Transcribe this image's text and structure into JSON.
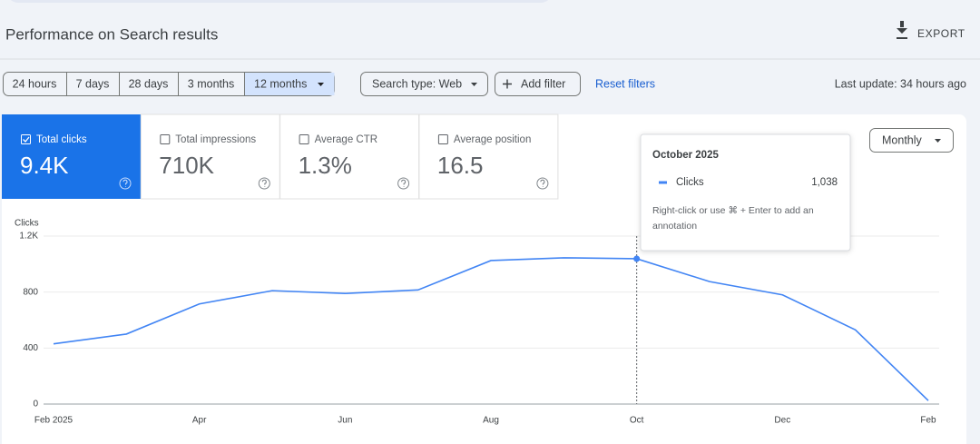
{
  "header": {
    "title": "Performance on Search results",
    "export": "EXPORT"
  },
  "filters": {
    "date_ranges": [
      "24 hours",
      "7 days",
      "28 days",
      "3 months",
      "12 months"
    ],
    "selected": 4,
    "search_type": "Search type: Web",
    "add_filter": "Add filter",
    "reset": "Reset filters",
    "last_update": "Last update: 34 hours ago"
  },
  "metrics": [
    {
      "label": "Total clicks",
      "value": "9.4K",
      "selected": true
    },
    {
      "label": "Total impressions",
      "value": "710K",
      "selected": false
    },
    {
      "label": "Average CTR",
      "value": "1.3%",
      "selected": false
    },
    {
      "label": "Average position",
      "value": "16.5",
      "selected": false
    }
  ],
  "granularity": "Monthly",
  "tooltip": {
    "title": "October 2025",
    "hint": "Right-click or use ⌘ + Enter to add an annotation"
  },
  "chart_data": {
    "type": "line",
    "y_label": "Clicks",
    "categories": [
      "Feb 2025",
      null,
      "Apr",
      null,
      "Jun",
      null,
      "Aug",
      null,
      "Oct",
      null,
      "Dec",
      null,
      "Feb"
    ],
    "series": [
      {
        "name": "Clicks",
        "color": "#4285f4",
        "values": [
          430,
          500,
          715,
          810,
          790,
          815,
          1025,
          1045,
          1038,
          875,
          780,
          530,
          25
        ],
        "value_labels": [
          null,
          null,
          null,
          null,
          null,
          null,
          null,
          null,
          "1,038",
          null,
          null,
          null,
          null
        ]
      }
    ],
    "ylim": [
      0,
      1200
    ],
    "yticks": [
      0,
      400,
      800,
      {
        "value": 1200,
        "label": "1.2K"
      }
    ],
    "grid": true
  }
}
